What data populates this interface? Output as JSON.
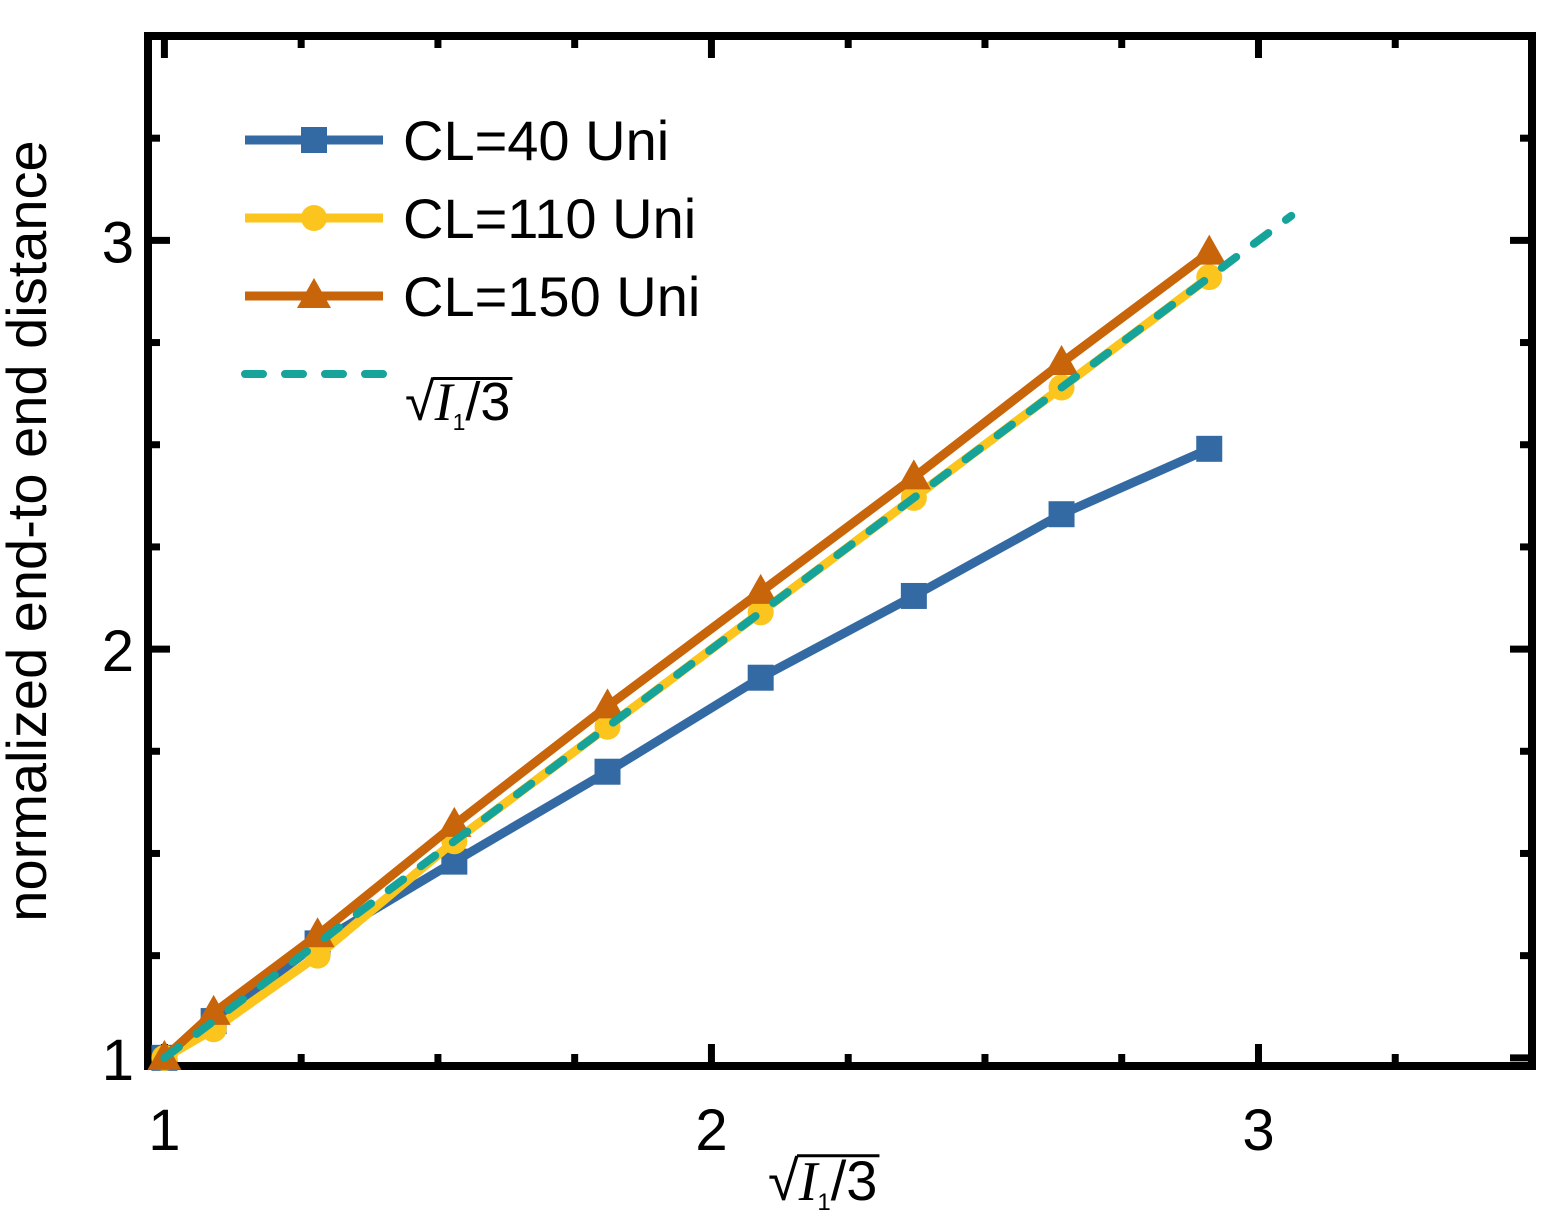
{
  "chart_data": {
    "type": "line",
    "title": "",
    "xlabel": "√(I₁/3)",
    "xlabel_parts": {
      "radical": "√",
      "var": "I",
      "sub": "1",
      "rest": "/3"
    },
    "ylabel": "normalized end-to end distance",
    "xlim": [
      0.97,
      3.5
    ],
    "ylim": [
      0.98,
      3.5
    ],
    "xticks": [
      1,
      2,
      3
    ],
    "xtick_labels": [
      "1",
      "2",
      "3"
    ],
    "xminor_step": 0.25,
    "yticks": [
      1,
      2,
      3
    ],
    "ytick_labels": [
      "1",
      "2",
      "3"
    ],
    "yminor_step": 0.25,
    "grid": false,
    "legend_position": "top-left",
    "series": [
      {
        "name": "CL=40 Uni",
        "color": "#346aa3",
        "marker": "square",
        "line": "solid",
        "x": [
          1.0,
          1.09,
          1.28,
          1.53,
          1.81,
          2.09,
          2.37,
          2.64,
          2.91
        ],
        "y": [
          1.0,
          1.09,
          1.28,
          1.48,
          1.7,
          1.93,
          2.13,
          2.33,
          2.49
        ]
      },
      {
        "name": "CL=110 Uni",
        "color": "#fbc51d",
        "marker": "circle",
        "line": "solid",
        "x": [
          1.0,
          1.09,
          1.28,
          1.53,
          1.81,
          2.09,
          2.37,
          2.64,
          2.91
        ],
        "y": [
          1.0,
          1.07,
          1.25,
          1.53,
          1.81,
          2.09,
          2.37,
          2.64,
          2.91
        ]
      },
      {
        "name": "CL=150 Uni",
        "color": "#c8650a",
        "marker": "triangle",
        "line": "solid",
        "x": [
          1.0,
          1.09,
          1.28,
          1.53,
          1.81,
          2.09,
          2.37,
          2.64,
          2.91
        ],
        "y": [
          1.0,
          1.11,
          1.3,
          1.57,
          1.86,
          2.14,
          2.42,
          2.7,
          2.97
        ]
      },
      {
        "name": "√(I₁/3)",
        "name_parts": {
          "radical": "√",
          "var": "I",
          "sub": "1",
          "rest": "/3"
        },
        "color": "#15a39a",
        "marker": "none",
        "line": "dashed",
        "x": [
          1.0,
          3.06
        ],
        "y": [
          1.0,
          3.06
        ]
      }
    ]
  }
}
